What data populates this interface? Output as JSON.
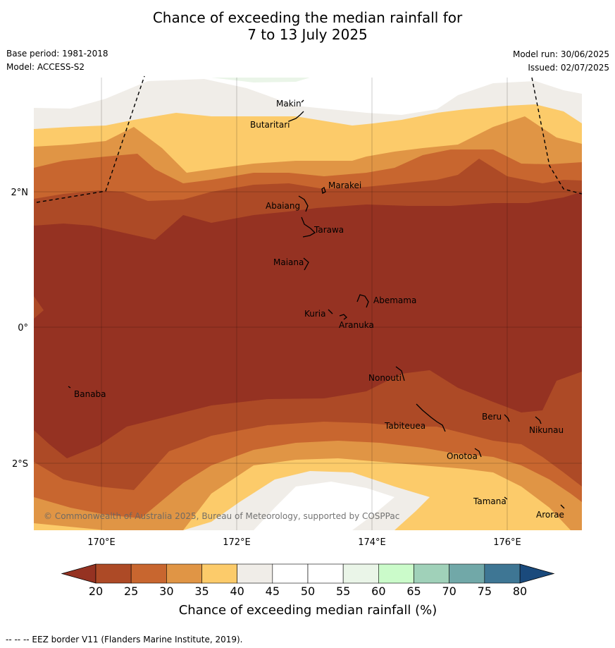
{
  "title": {
    "line1": "Chance of exceeding the median rainfall for",
    "line2": "7 to 13 July 2025"
  },
  "meta": {
    "base_period": "Base period: 1981-2018",
    "model": "Model: ACCESS-S2",
    "model_run": "Model run: 30/06/2025",
    "issued": "Issued: 02/07/2025"
  },
  "axes": {
    "lon_ticks": [
      "170°E",
      "172°E",
      "174°E",
      "176°E"
    ],
    "lat_ticks": [
      "2°N",
      "0°",
      "2°S"
    ]
  },
  "places": [
    {
      "name": "Makin"
    },
    {
      "name": "Butaritari"
    },
    {
      "name": "Marakei"
    },
    {
      "name": "Abaiang"
    },
    {
      "name": "Tarawa"
    },
    {
      "name": "Maiana"
    },
    {
      "name": "Abemama"
    },
    {
      "name": "Kuria"
    },
    {
      "name": "Aranuka"
    },
    {
      "name": "Nonouti"
    },
    {
      "name": "Banaba"
    },
    {
      "name": "Beru"
    },
    {
      "name": "Tabiteuea"
    },
    {
      "name": "Nikunau"
    },
    {
      "name": "Onotoa"
    },
    {
      "name": "Tamana"
    },
    {
      "name": "Arorae"
    }
  ],
  "copyright": "© Commonwealth of Australia 2025, Bureau of Meteorology, supported by COSPPac",
  "colorbar": {
    "title": "Chance of exceeding median rainfall (%)",
    "ticks": [
      "20",
      "25",
      "30",
      "35",
      "40",
      "45",
      "50",
      "55",
      "60",
      "65",
      "70",
      "75",
      "80"
    ],
    "colors": [
      "#ad4a26",
      "#c8662f",
      "#e09545",
      "#fccb6a",
      "#f0ede8",
      "#ffffff",
      "#ffffff",
      "#eaf5e8",
      "#cbfbca",
      "#a0d1b9",
      "#71a8a8",
      "#3e7694"
    ],
    "under_color": "#953222",
    "over_color": "#1a4a7c"
  },
  "footer": "--  --  -- EEZ border V11 (Flanders Marine Institute, 2019)."
}
